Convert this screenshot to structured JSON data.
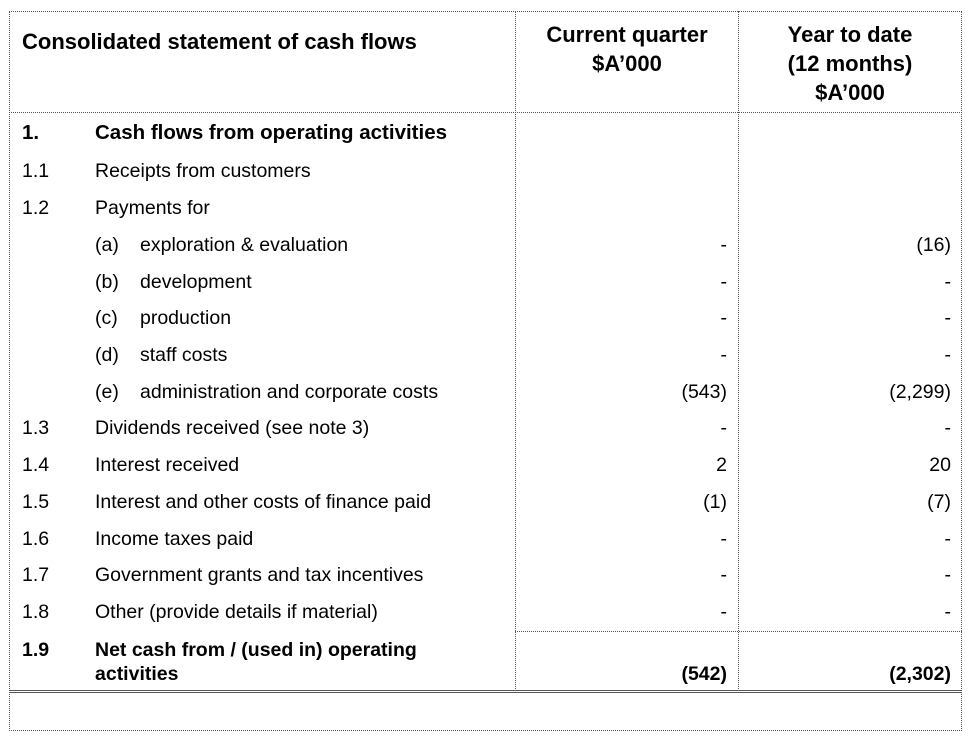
{
  "header": {
    "title": "Consolidated statement of cash flows",
    "col1": [
      "Current quarter",
      "$A’000"
    ],
    "col2": [
      "Year to date",
      "(12 months)",
      "$A’000"
    ]
  },
  "section": {
    "number": "1.",
    "title": "Cash flows from operating activities"
  },
  "rows": [
    {
      "num": "1.1",
      "label": "Receipts from customers",
      "cq": "",
      "ytd": ""
    },
    {
      "num": "1.2",
      "label": "Payments for",
      "cq": "",
      "ytd": ""
    },
    {
      "num": "",
      "sub": "(a)",
      "label": "exploration & evaluation",
      "cq": "-",
      "ytd": "(16)"
    },
    {
      "num": "",
      "sub": "(b)",
      "label": "development",
      "cq": "-",
      "ytd": "-"
    },
    {
      "num": "",
      "sub": "(c)",
      "label": "production",
      "cq": "-",
      "ytd": "-"
    },
    {
      "num": "",
      "sub": "(d)",
      "label": "staff costs",
      "cq": "-",
      "ytd": "-"
    },
    {
      "num": "",
      "sub": "(e)",
      "label": "administration and corporate costs",
      "cq": "(543)",
      "ytd": "(2,299)"
    },
    {
      "num": "1.3",
      "label": "Dividends received (see note 3)",
      "cq": "-",
      "ytd": "-"
    },
    {
      "num": "1.4",
      "label": "Interest received",
      "cq": "2",
      "ytd": "20"
    },
    {
      "num": "1.5",
      "label": "Interest and other costs of finance paid",
      "cq": "(1)",
      "ytd": "(7)"
    },
    {
      "num": "1.6",
      "label": "Income taxes paid",
      "cq": "-",
      "ytd": "-"
    },
    {
      "num": "1.7",
      "label": "Government grants and tax incentives",
      "cq": "-",
      "ytd": "-"
    },
    {
      "num": "1.8",
      "label": "Other (provide details if material)",
      "cq": "-",
      "ytd": "-"
    }
  ],
  "total": {
    "num": "1.9",
    "label_line1": "Net cash from / (used in) operating",
    "label_line2": "activities",
    "cq": "(542)",
    "ytd": "(2,302)"
  }
}
